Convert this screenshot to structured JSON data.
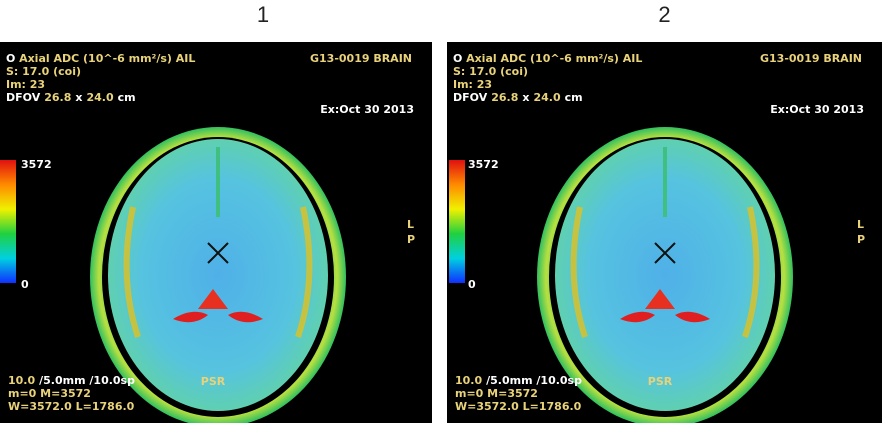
{
  "panels": [
    {
      "label": "1",
      "top_left": [
        [
          {
            "text": "O",
            "color": "#ffffff"
          },
          {
            "text": "Axial ADC (10^-6 mm²/s) AIL",
            "color": "#e8d27a"
          }
        ],
        [
          {
            "text": "S: 17.0 (coi)",
            "color": "#e8d27a"
          }
        ],
        [
          {
            "text": "Im: 23",
            "color": "#e8d27a"
          }
        ],
        [
          {
            "text": "DFOV",
            "color": "#ffffff"
          },
          {
            "text": "26.8",
            "color": "#e8d27a"
          },
          {
            "text": "x",
            "color": "#ffffff"
          },
          {
            "text": "24.0",
            "color": "#e8d27a"
          },
          {
            "text": "cm",
            "color": "#ffffff"
          }
        ]
      ],
      "top_right": "G13-0019 BRAIN",
      "date": "Ex:Oct 30 2013",
      "scale_max": "3572",
      "scale_min": "0",
      "orientation": [
        "L",
        "P"
      ],
      "bottom": "PSR",
      "bottom_left": [
        [
          {
            "text": "10.0",
            "color": "#e8d27a"
          },
          {
            "text": "/5.0mm /10.0sp",
            "color": "#ffffff"
          }
        ],
        [
          {
            "text": "m=0 M=3572",
            "color": "#e8d27a"
          }
        ],
        [
          {
            "text": "W=3572.0 L=1786.0",
            "color": "#e8d27a"
          }
        ]
      ]
    },
    {
      "label": "2",
      "top_left": [
        [
          {
            "text": "O",
            "color": "#ffffff"
          },
          {
            "text": "Axial ADC (10^-6 mm²/s) AIL",
            "color": "#e8d27a"
          }
        ],
        [
          {
            "text": "S: 17.0 (coi)",
            "color": "#e8d27a"
          }
        ],
        [
          {
            "text": "Im: 23",
            "color": "#e8d27a"
          }
        ],
        [
          {
            "text": "DFOV",
            "color": "#ffffff"
          },
          {
            "text": "26.8",
            "color": "#e8d27a"
          },
          {
            "text": "x",
            "color": "#ffffff"
          },
          {
            "text": "24.0",
            "color": "#e8d27a"
          },
          {
            "text": "cm",
            "color": "#ffffff"
          }
        ]
      ],
      "top_right": "G13-0019 BRAIN",
      "date": "Ex:Oct 30 2013",
      "scale_max": "3572",
      "scale_min": "0",
      "orientation": [
        "L",
        "P"
      ],
      "bottom": "PSR",
      "bottom_left": [
        [
          {
            "text": "10.0",
            "color": "#e8d27a"
          },
          {
            "text": "/5.0mm /10.0sp",
            "color": "#ffffff"
          }
        ],
        [
          {
            "text": "m=0 M=3572",
            "color": "#e8d27a"
          }
        ],
        [
          {
            "text": "W=3572.0 L=1786.0",
            "color": "#e8d27a"
          }
        ]
      ]
    }
  ]
}
